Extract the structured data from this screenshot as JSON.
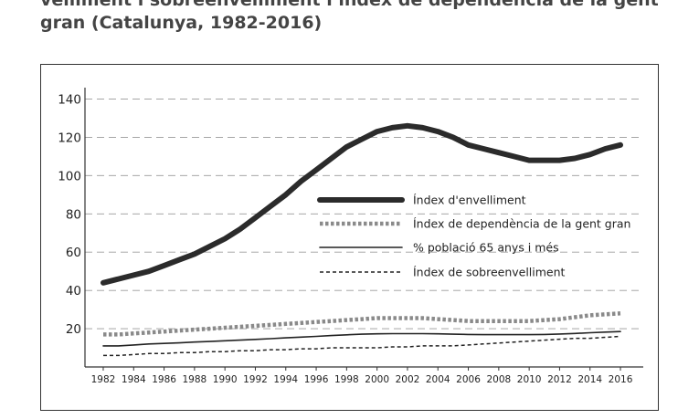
{
  "title": {
    "lines": [
      "velliment i sobreenvelliment i índex de dependència de la gent",
      "gran (Catalunya, 1982-2016)"
    ]
  },
  "chart_data": {
    "type": "line",
    "title": "velliment i sobreenvelliment i índex de dependència de la gent gran (Catalunya, 1982-2016)",
    "x": [
      1982,
      1983,
      1984,
      1985,
      1986,
      1987,
      1988,
      1989,
      1990,
      1991,
      1992,
      1993,
      1994,
      1995,
      1996,
      1997,
      1998,
      1999,
      2000,
      2001,
      2002,
      2003,
      2004,
      2005,
      2006,
      2007,
      2008,
      2009,
      2010,
      2011,
      2012,
      2013,
      2014,
      2015,
      2016
    ],
    "xticks": [
      "1982",
      "1984",
      "1986",
      "1988",
      "1990",
      "1992",
      "1994",
      "1996",
      "1998",
      "2000",
      "2002",
      "2004",
      "2006",
      "2008",
      "2010",
      "2012",
      "2014",
      "2016"
    ],
    "yticks": [
      "20",
      "40",
      "60",
      "80",
      "100",
      "120",
      "140"
    ],
    "ylim": [
      0,
      145
    ],
    "xlim": [
      1980.8,
      2017.5
    ],
    "grid": "horizontal dashed",
    "legend_position": "center-right",
    "series": [
      {
        "name": "Índex d'envelliment",
        "style": "thick-solid",
        "color": "#2b2b2b",
        "values": [
          44,
          46,
          48,
          50,
          53,
          56,
          59,
          63,
          67,
          72,
          78,
          84,
          90,
          97,
          103,
          109,
          115,
          119,
          123,
          125,
          126,
          125,
          123,
          120,
          116,
          114,
          112,
          110,
          108,
          108,
          108,
          109,
          111,
          114,
          116
        ]
      },
      {
        "name": "Índex de dependència de la gent gran",
        "style": "thick-dotted",
        "color": "#8a8a8a",
        "values": [
          17,
          17,
          17.5,
          18,
          18.5,
          19,
          19.5,
          20,
          20.5,
          21,
          21.5,
          22,
          22.5,
          23,
          23.5,
          24,
          24.5,
          25,
          25.5,
          25.5,
          25.5,
          25.5,
          25,
          24.5,
          24,
          24,
          24,
          24,
          24,
          24.5,
          25,
          26,
          27,
          27.5,
          28
        ]
      },
      {
        "name": "% població 65 anys i més",
        "style": "thin-solid",
        "color": "#222222",
        "values": [
          11,
          11,
          11.5,
          12,
          12.3,
          12.6,
          13,
          13.3,
          13.7,
          14,
          14.4,
          14.8,
          15.2,
          15.6,
          16,
          16.4,
          16.8,
          17.1,
          17.3,
          17.4,
          17.4,
          17.4,
          17.3,
          17.1,
          17,
          16.9,
          16.9,
          16.9,
          16.9,
          17,
          17.2,
          17.5,
          17.9,
          18.2,
          18.5
        ]
      },
      {
        "name": "Índex de sobreenvelliment",
        "style": "thin-dashed",
        "color": "#222222",
        "values": [
          6,
          6,
          6.5,
          7,
          7,
          7.5,
          7.5,
          8,
          8,
          8.5,
          8.5,
          9,
          9,
          9.5,
          9.5,
          10,
          10,
          10,
          10,
          10.5,
          10.5,
          11,
          11,
          11,
          11.5,
          12,
          12.5,
          13,
          13.5,
          14,
          14.5,
          15,
          15,
          15.5,
          16
        ]
      }
    ]
  }
}
